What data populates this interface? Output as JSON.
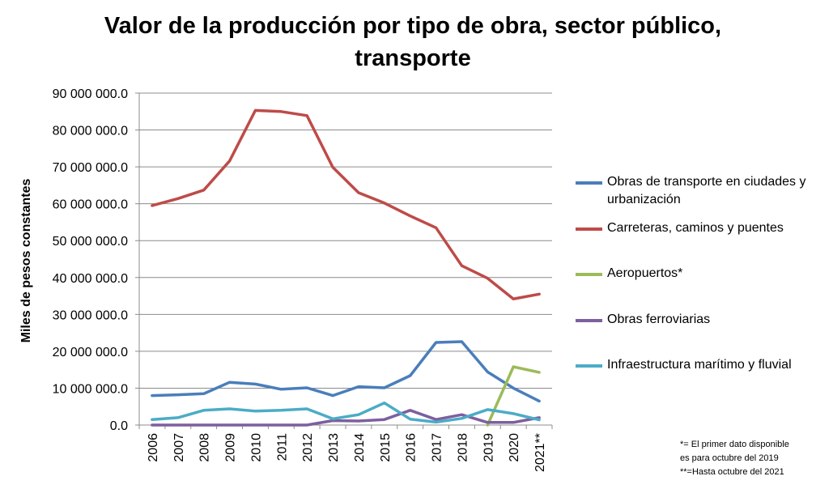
{
  "chart_data": {
    "type": "line",
    "title": "Valor de la producción por tipo de obra, sector público, transporte",
    "ylabel": "Miles de pesos constantes",
    "xlabel": "",
    "ylim": [
      0,
      90000000
    ],
    "yticks": [
      "0.0",
      "10 000 000.0",
      "20 000 000.0",
      "30 000 000.0",
      "40 000 000.0",
      "50 000 000.0",
      "60 000 000.0",
      "70 000 000.0",
      "80 000 000.0",
      "90 000 000.0"
    ],
    "categories": [
      "2006",
      "2007",
      "2008",
      "2009",
      "2010",
      "2011",
      "2012",
      "2013",
      "2014",
      "2015",
      "2016",
      "2017",
      "2018",
      "2019",
      "2020",
      "2021**"
    ],
    "grid": true,
    "legend_position": "right",
    "series": [
      {
        "name": "Obras de transporte en ciudades y urbanización",
        "color": "#4a7ebb",
        "values": [
          8000000,
          8200000,
          8500000,
          11600000,
          11100000,
          9700000,
          10100000,
          8000000,
          10400000,
          10100000,
          13400000,
          22400000,
          22600000,
          14400000,
          10000000,
          6500000
        ]
      },
      {
        "name": "Carreteras, caminos y puentes",
        "color": "#be4b48",
        "values": [
          59500000,
          61400000,
          63700000,
          71600000,
          85300000,
          85000000,
          83900000,
          69900000,
          63000000,
          60200000,
          56700000,
          53500000,
          43200000,
          39800000,
          34200000,
          35500000
        ]
      },
      {
        "name": "Aeropuertos*",
        "color": "#9bbb59",
        "values": [
          null,
          null,
          null,
          null,
          null,
          null,
          null,
          null,
          null,
          null,
          null,
          null,
          null,
          0,
          15800000,
          14300000
        ]
      },
      {
        "name": "Obras ferroviarias",
        "color": "#7d5fa0",
        "values": [
          0,
          0,
          0,
          0,
          0,
          0,
          0,
          1200000,
          1100000,
          1500000,
          4000000,
          1500000,
          2800000,
          700000,
          700000,
          2000000
        ]
      },
      {
        "name": "Infraestructura marítimo y fluvial",
        "color": "#4bacc6",
        "values": [
          1500000,
          2000000,
          4000000,
          4400000,
          3800000,
          4000000,
          4400000,
          1700000,
          2800000,
          6000000,
          1600000,
          800000,
          1800000,
          4200000,
          3100000,
          1400000
        ]
      }
    ],
    "footnotes": [
      "*= El primer dato disponible",
      " es para octubre del 2019",
      "**=Hasta octubre del 2021"
    ]
  }
}
